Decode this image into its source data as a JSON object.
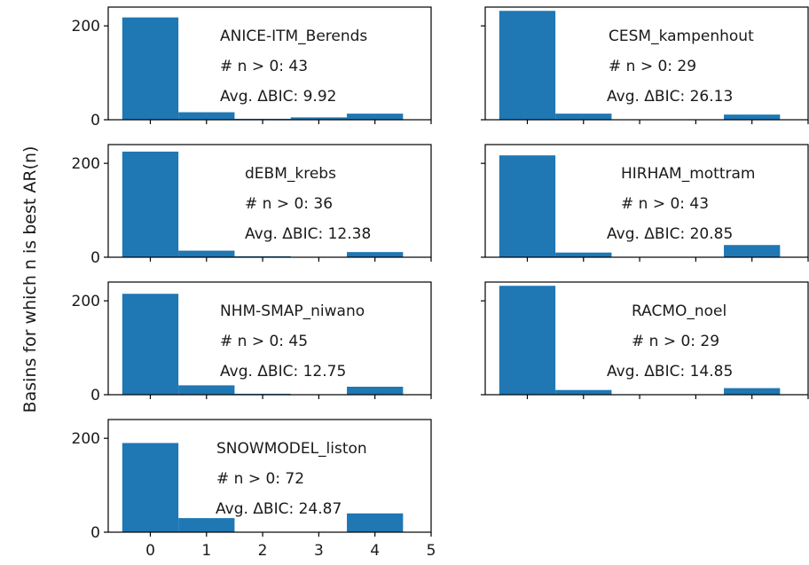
{
  "chart_data": {
    "type": "bar",
    "ylabel": "Basins for which n is best AR(n)",
    "bar_color": "#1f77b4",
    "x_ticks": [
      "0",
      "1",
      "2",
      "3",
      "4",
      "5"
    ],
    "y_ticks": [
      "0",
      "200"
    ],
    "xlim": [
      -0.75,
      5
    ],
    "ylim": [
      0,
      240
    ],
    "bins": [
      0,
      1,
      2,
      3,
      4
    ],
    "bin_width": 1,
    "panels": [
      {
        "name": "ANICE-ITM_Berends",
        "stat_line": "# n > 0: 43",
        "bic_line": "Avg. ΔBIC: 9.92",
        "values": [
          218,
          16,
          2,
          5,
          13
        ],
        "show_x_labels": false
      },
      {
        "name": "CESM_kampenhout",
        "stat_line": "# n > 0: 29",
        "bic_line": "Avg. ΔBIC: 26.13",
        "values": [
          232,
          13,
          0,
          0,
          11
        ],
        "show_x_labels": false
      },
      {
        "name": "dEBM_krebs",
        "stat_line": "# n > 0: 36",
        "bic_line": "Avg. ΔBIC: 12.38",
        "values": [
          225,
          14,
          2,
          0,
          11
        ],
        "show_x_labels": false
      },
      {
        "name": "HIRHAM_mottram",
        "stat_line": "# n > 0: 43",
        "bic_line": "Avg. ΔBIC: 20.85",
        "values": [
          217,
          10,
          0,
          0,
          26
        ],
        "show_x_labels": false
      },
      {
        "name": "NHM-SMAP_niwano",
        "stat_line": "# n > 0: 45",
        "bic_line": "Avg. ΔBIC: 12.75",
        "values": [
          215,
          20,
          2,
          0,
          17
        ],
        "show_x_labels": false
      },
      {
        "name": "RACMO_noel",
        "stat_line": "# n > 0: 29",
        "bic_line": "Avg. ΔBIC: 14.85",
        "values": [
          232,
          10,
          0,
          0,
          14
        ],
        "show_x_labels": false
      },
      {
        "name": "SNOWMODEL_liston",
        "stat_line": "# n > 0: 72",
        "bic_line": "Avg. ΔBIC: 24.87",
        "values": [
          190,
          30,
          0,
          0,
          40
        ],
        "show_x_labels": true
      }
    ]
  }
}
